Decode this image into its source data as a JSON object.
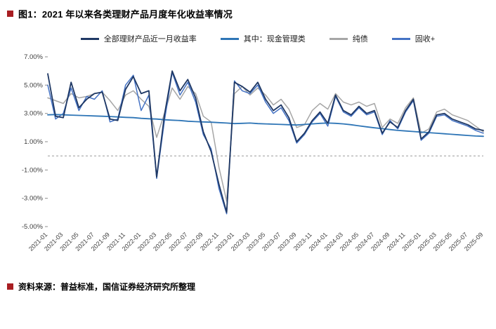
{
  "page": {
    "title": "图1：2021 年以来各类理财产品月度年化收益率情况",
    "source": "资料来源：普益标准，国信证券经济研究所整理",
    "accent_color": "#A81E22"
  },
  "chart_data": {
    "type": "line",
    "title": "2021 年以来各类理财产品月度年化收益率情况",
    "xlabel": "",
    "ylabel": "",
    "ylim": [
      -5,
      7
    ],
    "grid": false,
    "legend_position": "top",
    "zero_line": {
      "style": "dashed",
      "color": "#9a9a9a"
    },
    "yticks": [
      {
        "value": 7,
        "label": "7.00%"
      },
      {
        "value": 5,
        "label": "5.00%"
      },
      {
        "value": 3,
        "label": "3.00%"
      },
      {
        "value": 1,
        "label": "1.00%"
      },
      {
        "value": -1,
        "label": "-1.00%"
      },
      {
        "value": -3,
        "label": "-3.00%"
      },
      {
        "value": -5,
        "label": "-5.00%"
      }
    ],
    "x_label_every": 2,
    "x": [
      "2021-01",
      "2021-02",
      "2021-03",
      "2021-04",
      "2021-05",
      "2021-06",
      "2021-07",
      "2021-08",
      "2021-09",
      "2021-10",
      "2021-11",
      "2021-12",
      "2022-01",
      "2022-02",
      "2022-03",
      "2022-04",
      "2022-05",
      "2022-06",
      "2022-07",
      "2022-08",
      "2022-09",
      "2022-10",
      "2022-11",
      "2022-12",
      "2023-01",
      "2023-02",
      "2023-03",
      "2023-04",
      "2023-05",
      "2023-06",
      "2023-07",
      "2023-08",
      "2023-09",
      "2023-10",
      "2023-11",
      "2023-12",
      "2024-01",
      "2024-02",
      "2024-03",
      "2024-04",
      "2024-05",
      "2024-06",
      "2024-07",
      "2024-08",
      "2024-09",
      "2024-10",
      "2024-11",
      "2024-12",
      "2025-01",
      "2025-02",
      "2025-03",
      "2025-04",
      "2025-05",
      "2025-06",
      "2025-07",
      "2025-08",
      "2025-09"
    ],
    "series": [
      {
        "name": "全部理财产品近一月收益率",
        "color": "#1F3864",
        "width": 1.8,
        "z": 4,
        "values": [
          5.8,
          2.8,
          2.7,
          5.2,
          3.4,
          4.0,
          4.4,
          4.5,
          2.6,
          2.5,
          4.7,
          5.6,
          4.4,
          4.6,
          -1.5,
          2.9,
          6.0,
          4.6,
          5.4,
          4.1,
          1.7,
          0.3,
          -2.0,
          -4.0,
          5.2,
          4.9,
          4.5,
          5.2,
          4.0,
          3.2,
          3.6,
          2.7,
          1.0,
          1.6,
          2.5,
          3.1,
          2.3,
          4.3,
          3.2,
          2.9,
          3.5,
          3.0,
          3.2,
          1.6,
          2.4,
          2.0,
          3.2,
          4.0,
          1.2,
          1.7,
          2.9,
          3.0,
          2.6,
          2.4,
          2.2,
          1.9,
          1.8
        ]
      },
      {
        "name": "其中：现金管理类",
        "color": "#2E75B6",
        "width": 1.8,
        "z": 3,
        "values": [
          2.9,
          2.92,
          2.9,
          2.88,
          2.86,
          2.84,
          2.82,
          2.8,
          2.78,
          2.75,
          2.72,
          2.7,
          2.65,
          2.62,
          2.6,
          2.55,
          2.52,
          2.5,
          2.45,
          2.42,
          2.4,
          2.38,
          2.35,
          2.32,
          2.28,
          2.3,
          2.32,
          2.28,
          2.26,
          2.24,
          2.22,
          2.2,
          2.18,
          2.22,
          2.26,
          2.3,
          2.32,
          2.3,
          2.26,
          2.2,
          2.12,
          2.05,
          1.98,
          1.92,
          1.86,
          1.8,
          1.76,
          1.72,
          1.68,
          1.64,
          1.6,
          1.56,
          1.52,
          1.48,
          1.44,
          1.4,
          1.38
        ]
      },
      {
        "name": "纯债",
        "color": "#A6A6A6",
        "width": 1.5,
        "z": 1,
        "values": [
          4.1,
          3.9,
          3.7,
          4.4,
          4.1,
          4.2,
          4.4,
          4.5,
          3.9,
          3.2,
          4.3,
          4.6,
          4.0,
          3.5,
          1.3,
          3.0,
          4.8,
          4.0,
          4.9,
          4.4,
          2.8,
          2.4,
          -0.8,
          -3.2,
          4.4,
          4.9,
          4.3,
          4.8,
          4.3,
          3.6,
          4.0,
          3.3,
          2.0,
          2.2,
          3.2,
          3.7,
          3.3,
          4.4,
          3.8,
          3.6,
          3.8,
          3.5,
          3.7,
          2.0,
          2.6,
          2.3,
          3.4,
          4.1,
          1.6,
          1.9,
          3.1,
          3.3,
          2.9,
          2.7,
          2.5,
          2.1,
          1.7
        ]
      },
      {
        "name": "固收+",
        "color": "#4472C4",
        "width": 1.5,
        "z": 2,
        "values": [
          5.0,
          2.6,
          3.0,
          4.8,
          3.2,
          4.2,
          4.0,
          4.6,
          2.4,
          2.6,
          5.0,
          5.7,
          3.2,
          4.3,
          -1.6,
          2.5,
          5.9,
          4.3,
          5.2,
          3.8,
          1.5,
          0.5,
          -2.3,
          -4.1,
          5.3,
          4.6,
          4.4,
          5.0,
          3.8,
          3.0,
          3.4,
          2.5,
          0.9,
          1.5,
          2.4,
          3.0,
          2.1,
          4.2,
          3.1,
          2.8,
          3.4,
          2.9,
          3.1,
          1.5,
          2.5,
          1.9,
          3.1,
          3.9,
          1.1,
          1.6,
          2.8,
          2.9,
          2.5,
          2.3,
          2.1,
          1.8,
          1.6
        ]
      }
    ]
  }
}
